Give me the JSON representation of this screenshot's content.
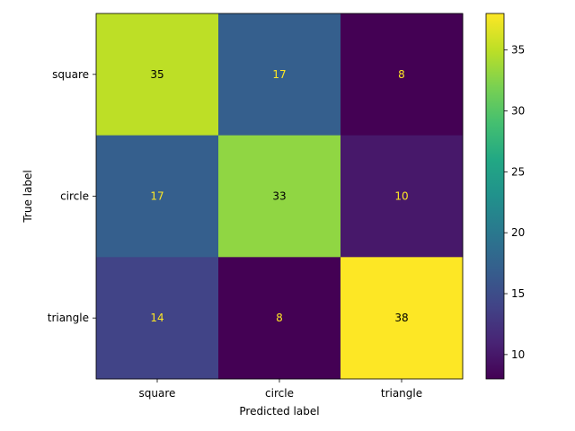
{
  "chart_data": {
    "type": "heatmap",
    "title": "",
    "xlabel": "Predicted label",
    "ylabel": "True label",
    "x_categories": [
      "square",
      "circle",
      "triangle"
    ],
    "y_categories": [
      "square",
      "circle",
      "triangle"
    ],
    "values": [
      [
        35,
        17,
        8
      ],
      [
        17,
        33,
        10
      ],
      [
        14,
        8,
        38
      ]
    ],
    "colormap": "viridis",
    "colorbar": {
      "range": [
        8,
        38
      ],
      "ticks": [
        10,
        15,
        20,
        25,
        30,
        35
      ]
    },
    "text_colors": {
      "light_cells": "#000000",
      "dark_cells": "#fde725"
    }
  }
}
